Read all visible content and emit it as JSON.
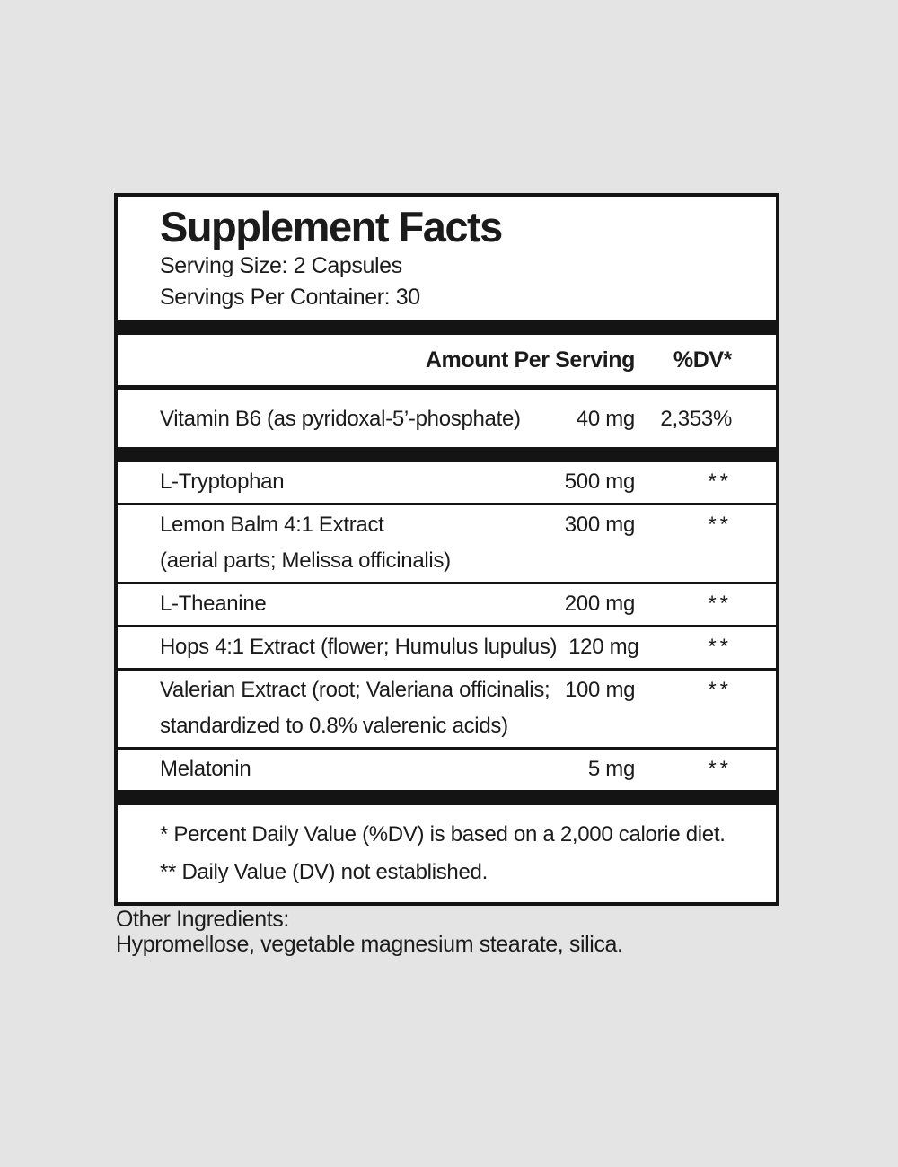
{
  "label": {
    "title": "Supplement Facts",
    "serving_size": "Serving Size: 2 Capsules",
    "servings_per_container": "Servings Per Container: 30",
    "header": {
      "amount": "Amount Per Serving",
      "dv": "%DV*"
    },
    "vitamin_row": {
      "name": "Vitamin B6 (as pyridoxal-5’-phosphate)",
      "amount": "40 mg",
      "dv": "2,353%"
    },
    "rows": [
      {
        "name": "L-Tryptophan",
        "name2": "",
        "amount": "500 mg",
        "dv": "**"
      },
      {
        "name": "Lemon Balm 4:1 Extract",
        "name2": "(aerial parts; Melissa officinalis)",
        "amount": "300 mg",
        "dv": "**"
      },
      {
        "name": "L-Theanine",
        "name2": "",
        "amount": "200 mg",
        "dv": "**"
      },
      {
        "name": "Hops 4:1 Extract (flower; Humulus lupulus)",
        "name2": "",
        "amount": "120 mg",
        "dv": "**"
      },
      {
        "name": "Valerian Extract (root; Valeriana officinalis;",
        "name2": "standardized to 0.8% valerenic acids)",
        "amount": "100 mg",
        "dv": "**"
      },
      {
        "name": "Melatonin",
        "name2": "",
        "amount": "5 mg",
        "dv": "**"
      }
    ],
    "footnotes": [
      "* Percent Daily Value (%DV) is based on a 2,000 calorie diet.",
      "** Daily Value (DV) not established."
    ],
    "other_ingredients": {
      "heading": "Other Ingredients:",
      "text": "Hypromellose, vegetable magnesium stearate, silica."
    },
    "colors": {
      "page_bg": "#e4e4e4",
      "panel_bg": "#ffffff",
      "ink": "#141414"
    }
  }
}
